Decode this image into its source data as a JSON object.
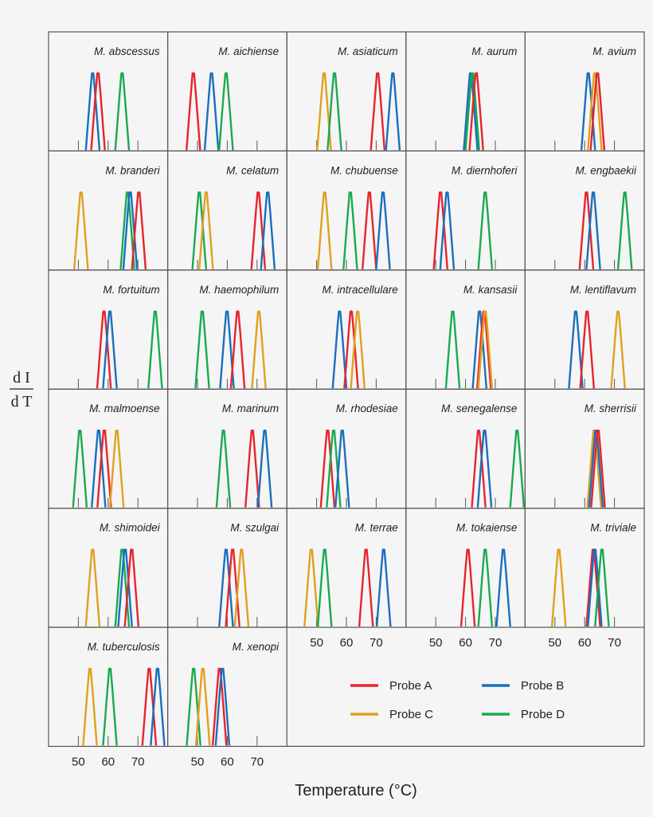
{
  "chart_data": {
    "type": "line",
    "subtype": "small-multiples melting peaks",
    "xlabel": "Temperature (°C)",
    "xlabel_main": "Temperature (",
    "xlabel_sup": "o",
    "xlabel_end": "C)",
    "ylabel_num": "d I",
    "ylabel_den": "d T",
    "xlim": [
      40,
      80
    ],
    "xticks": [
      50,
      60,
      70
    ],
    "grid": false,
    "legend_placement": "bottom-right",
    "series_colors": {
      "Probe A": "#e8242c",
      "Probe B": "#1a6fbf",
      "Probe C": "#e0a020",
      "Probe D": "#1aaa50"
    },
    "legend": [
      "Probe A",
      "Probe B",
      "Probe C",
      "Probe D"
    ],
    "panels": [
      {
        "title": "M. abscessus",
        "peaks": {
          "Probe B": 54.8,
          "Probe A": 56.6,
          "Probe D": 64.7
        }
      },
      {
        "title": "M. aichiense",
        "peaks": {
          "Probe A": 48.6,
          "Probe B": 54.7,
          "Probe D": 59.6
        }
      },
      {
        "title": "M. asiaticum",
        "peaks": {
          "Probe C": 52.5,
          "Probe D": 56.0,
          "Probe A": 70.5,
          "Probe B": 75.6
        }
      },
      {
        "title": "M. aurum",
        "peaks": {
          "Probe B": 61.7,
          "Probe D": 62.3,
          "Probe A": 63.6
        }
      },
      {
        "title": "M. avium",
        "peaks": {
          "Probe B": 61.2,
          "Probe C": 63.4,
          "Probe A": 64.3
        }
      },
      {
        "title": "M. branderi",
        "peaks": {
          "Probe C": 50.9,
          "Probe D": 66.5,
          "Probe B": 67.4,
          "Probe A": 70.3
        }
      },
      {
        "title": "M. celatum",
        "peaks": {
          "Probe D": 50.6,
          "Probe C": 52.9,
          "Probe A": 70.4,
          "Probe B": 73.6
        }
      },
      {
        "title": "M. chubuense",
        "peaks": {
          "Probe C": 52.7,
          "Probe D": 61.3,
          "Probe A": 67.7,
          "Probe B": 72.3
        }
      },
      {
        "title": "M. diernhoferi",
        "peaks": {
          "Probe A": 51.6,
          "Probe B": 53.8,
          "Probe D": 66.6
        }
      },
      {
        "title": "M. engbaekii",
        "peaks": {
          "Probe A": 60.6,
          "Probe B": 62.9,
          "Probe D": 73.5
        }
      },
      {
        "title": "M. fortuitum",
        "peaks": {
          "Probe A": 58.6,
          "Probe B": 60.6,
          "Probe D": 75.8
        }
      },
      {
        "title": "M. haemophilum",
        "peaks": {
          "Probe D": 51.6,
          "Probe B": 59.9,
          "Probe A": 63.5,
          "Probe C": 70.6
        }
      },
      {
        "title": "M. intracellulare",
        "peaks": {
          "Probe B": 57.7,
          "Probe A": 61.6,
          "Probe C": 63.8
        }
      },
      {
        "title": "M. kansasii",
        "peaks": {
          "Probe D": 55.7,
          "Probe B": 64.7,
          "Probe A": 66.2,
          "Probe C": 66.6
        }
      },
      {
        "title": "M. lentiflavum",
        "peaks": {
          "Probe B": 57.0,
          "Probe A": 60.8,
          "Probe C": 71.2
        }
      },
      {
        "title": "M. malmoense",
        "peaks": {
          "Probe D": 50.5,
          "Probe B": 56.8,
          "Probe A": 58.7,
          "Probe C": 62.9
        }
      },
      {
        "title": "M. marinum",
        "peaks": {
          "Probe D": 58.7,
          "Probe A": 68.4,
          "Probe B": 72.6
        }
      },
      {
        "title": "M. rhodesiae",
        "peaks": {
          "Probe A": 53.7,
          "Probe D": 55.7,
          "Probe B": 58.6
        }
      },
      {
        "title": "M. senegalense",
        "peaks": {
          "Probe A": 64.4,
          "Probe B": 66.4,
          "Probe D": 77.3
        }
      },
      {
        "title": "M. sherrisii",
        "peaks": {
          "Probe C": 63.2,
          "Probe B": 63.8,
          "Probe A": 64.5
        }
      },
      {
        "title": "M. shimoidei",
        "peaks": {
          "Probe C": 54.8,
          "Probe D": 64.7,
          "Probe B": 65.7,
          "Probe A": 67.9
        }
      },
      {
        "title": "M. szulgai",
        "peaks": {
          "Probe B": 59.6,
          "Probe A": 61.8,
          "Probe C": 64.8
        }
      },
      {
        "title": "M. terrae",
        "peaks": {
          "Probe C": 48.2,
          "Probe D": 52.7,
          "Probe A": 66.6,
          "Probe B": 72.5
        }
      },
      {
        "title": "M. tokaiense",
        "peaks": {
          "Probe A": 60.8,
          "Probe D": 66.6,
          "Probe B": 72.7
        }
      },
      {
        "title": "M. triviale",
        "peaks": {
          "Probe C": 51.3,
          "Probe A": 62.9,
          "Probe B": 63.4,
          "Probe D": 65.8
        }
      },
      {
        "title": "M. tuberculosis",
        "peaks": {
          "Probe C": 53.9,
          "Probe D": 60.6,
          "Probe A": 73.8,
          "Probe B": 76.6
        }
      },
      {
        "title": "M. xenopi",
        "peaks": {
          "Probe D": 48.7,
          "Probe C": 51.8,
          "Probe A": 57.4,
          "Probe B": 58.4
        }
      }
    ]
  }
}
